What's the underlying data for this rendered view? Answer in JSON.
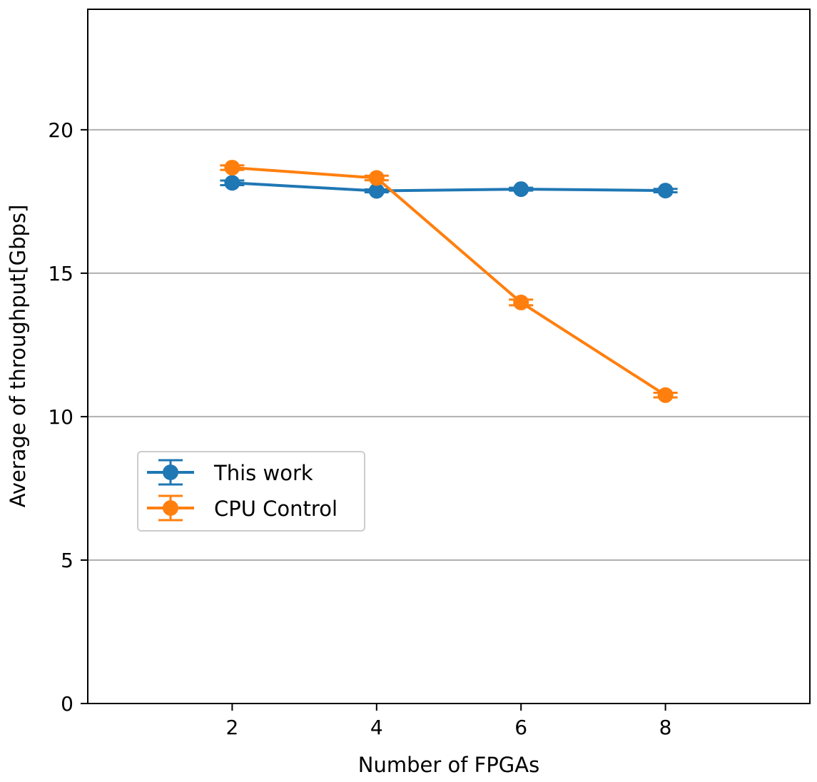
{
  "chart_data": {
    "type": "line",
    "xlabel": "Number of FPGAs",
    "ylabel": "Average of throughput[Gbps]",
    "x": [
      2,
      4,
      6,
      8
    ],
    "xlim": [
      0,
      10
    ],
    "ylim": [
      0,
      24.2
    ],
    "xticks": [
      "2",
      "4",
      "6",
      "8"
    ],
    "yticks": [
      "0",
      "5",
      "10",
      "15",
      "20"
    ],
    "grid": "horizontal",
    "legend_position": "center-left",
    "series": [
      {
        "name": "This work",
        "color": "#1f77b4",
        "values": [
          18.15,
          17.87,
          17.93,
          17.88
        ],
        "errors": [
          0.08,
          0.05,
          0.05,
          0.06
        ]
      },
      {
        "name": "CPU Control",
        "color": "#ff7f0e",
        "values": [
          18.68,
          18.32,
          13.98,
          10.75
        ],
        "errors": [
          0.08,
          0.08,
          0.1,
          0.08
        ]
      }
    ]
  }
}
